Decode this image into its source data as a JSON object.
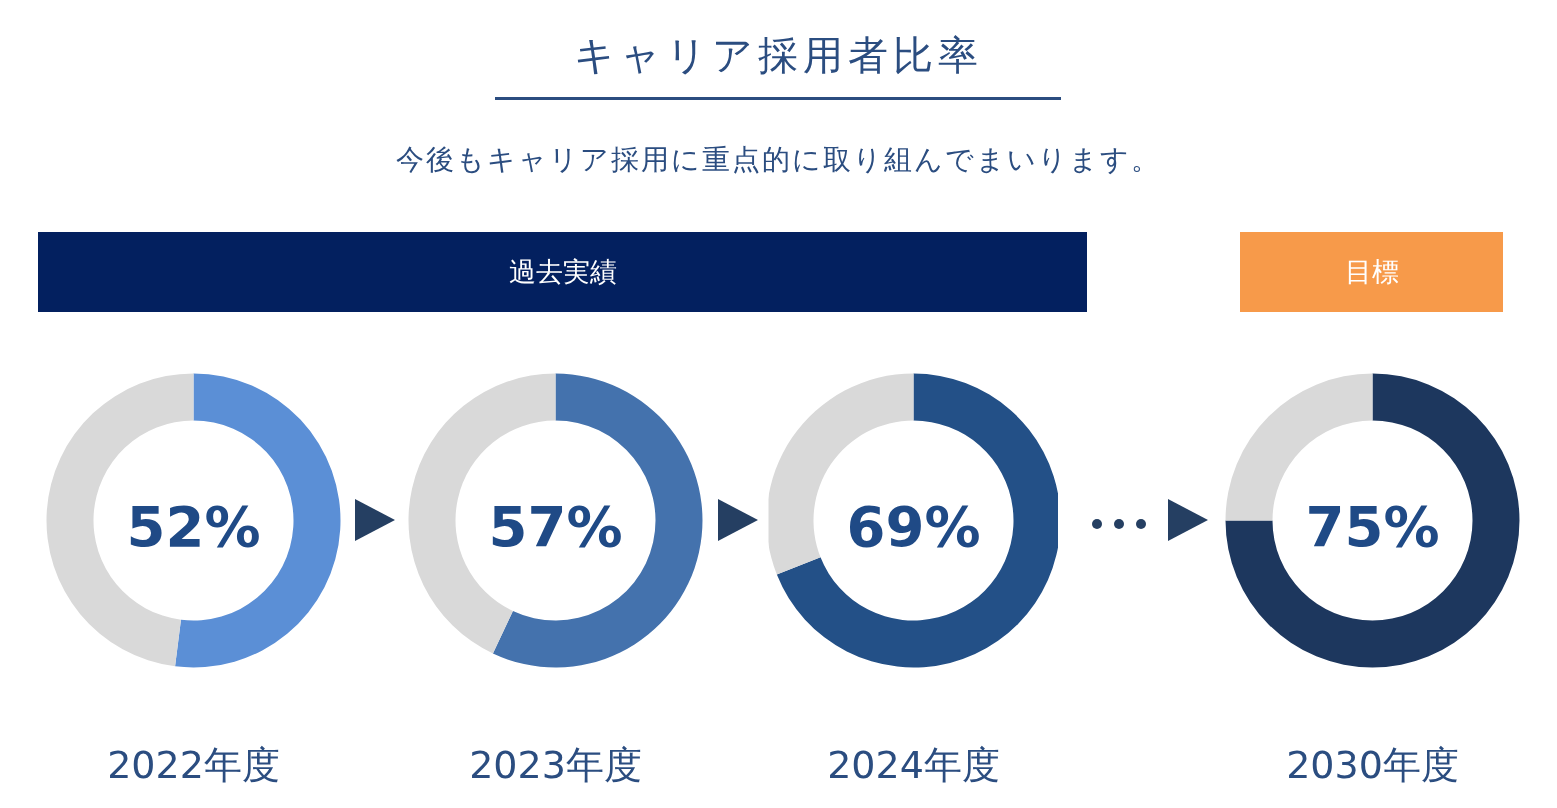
{
  "chart_data": [
    {
      "type": "other",
      "title": "キャリア採用者比率",
      "subtitle": "今後もキャリア採用に重点的に取り組んでまいります。",
      "categories": [
        "過去実績",
        "目標"
      ],
      "colors": [
        "#03205f",
        "#f79a4a"
      ]
    },
    {
      "type": "donut",
      "title": "2022年度",
      "categories": [
        null,
        null
      ],
      "values": [
        52,
        48
      ],
      "colors": [
        "#5b8fd6",
        "#d9d9d9"
      ],
      "value_labels": [
        "52%",
        null
      ]
    },
    {
      "type": "donut",
      "title": "2023年度",
      "categories": [
        null,
        null
      ],
      "values": [
        57,
        43
      ],
      "colors": [
        "#4472ad",
        "#d9d9d9"
      ],
      "value_labels": [
        "57%",
        null
      ]
    },
    {
      "type": "donut",
      "title": "2024年度",
      "categories": [
        null,
        null
      ],
      "values": [
        69,
        31
      ],
      "colors": [
        "#235087",
        "#d9d9d9"
      ],
      "value_labels": [
        "69%",
        null
      ]
    },
    {
      "type": "donut",
      "title": "2030年度",
      "categories": [
        null,
        null
      ],
      "values": [
        75,
        25
      ],
      "colors": [
        "#1d375e",
        "#d9d9d9"
      ],
      "value_labels": [
        "75%",
        null
      ]
    }
  ]
}
